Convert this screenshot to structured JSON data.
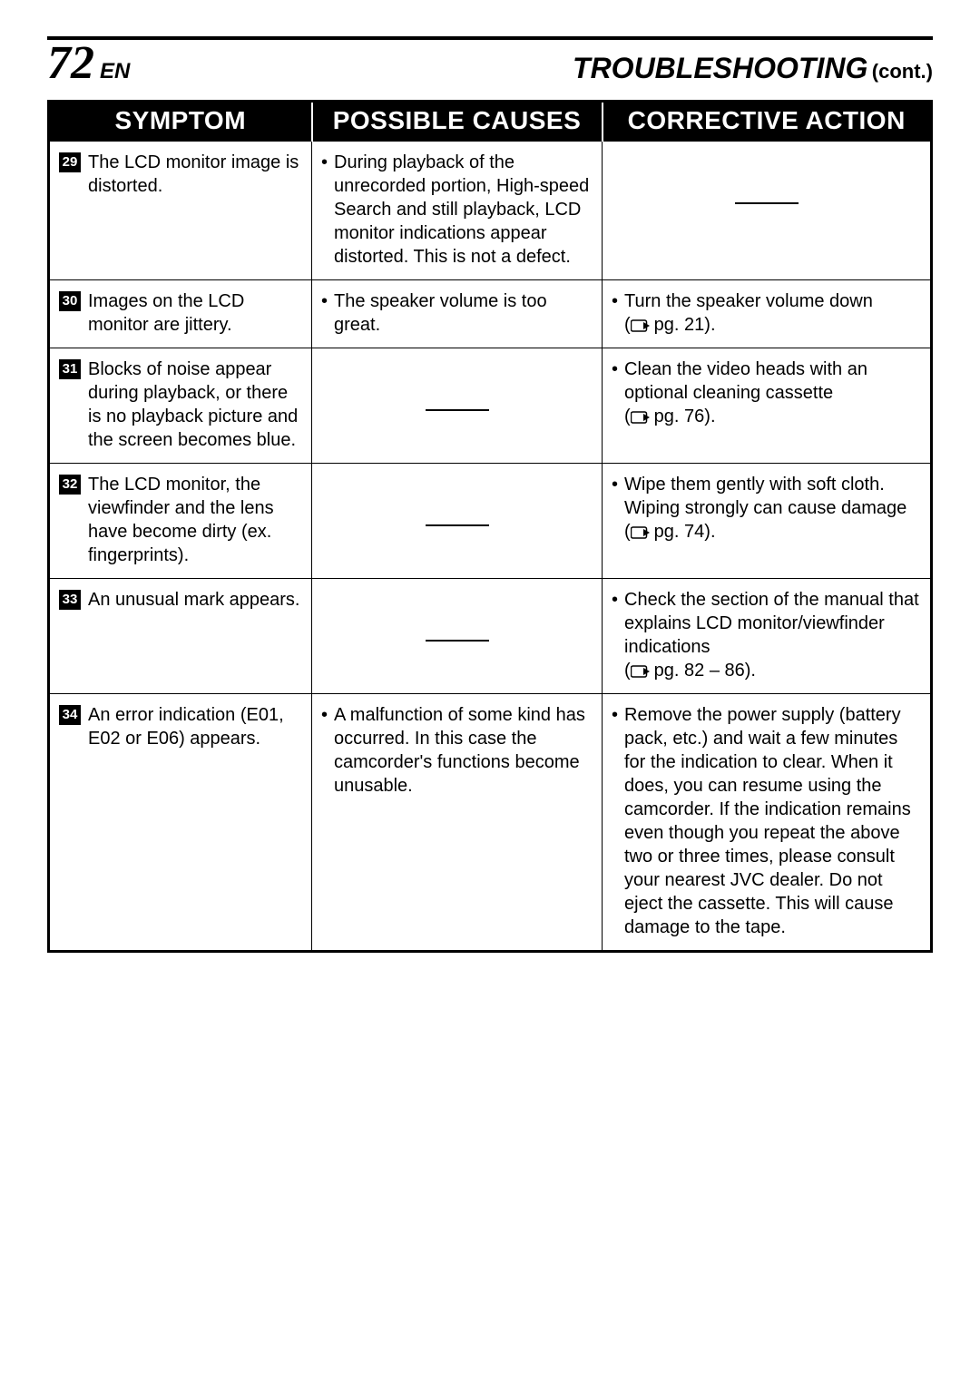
{
  "header": {
    "page_number": "72",
    "lang": "EN",
    "title": "TROUBLESHOOTING",
    "cont": "(cont.)"
  },
  "table": {
    "columns": [
      "SYMPTOM",
      "POSSIBLE CAUSES",
      "CORRECTIVE ACTION"
    ],
    "rows": [
      {
        "idx": "29",
        "symptom": "The LCD monitor image is distorted.",
        "cause": "During playback of the unrecorded portion, High-speed Search and still playback, LCD monitor indications appear distorted. This is not a defect.",
        "action": null,
        "action_ref": null
      },
      {
        "idx": "30",
        "symptom": "Images on the LCD monitor are jittery.",
        "cause": "The speaker volume is too great.",
        "action": "Turn the speaker volume down",
        "action_ref": "pg. 21"
      },
      {
        "idx": "31",
        "symptom": "Blocks of noise appear during playback, or there is no playback picture and the screen becomes blue.",
        "cause": null,
        "action": "Clean the video heads with an optional cleaning cassette",
        "action_ref": "pg. 76"
      },
      {
        "idx": "32",
        "symptom": "The LCD monitor, the viewfinder and the lens have become dirty (ex. fingerprints).",
        "cause": null,
        "action": "Wipe them gently with soft cloth. Wiping strongly can cause damage",
        "action_ref": "pg. 74"
      },
      {
        "idx": "33",
        "symptom": "An unusual mark appears.",
        "cause": null,
        "action": "Check the section of the manual that explains LCD monitor/viewfinder indications",
        "action_ref": "pg. 82 – 86"
      },
      {
        "idx": "34",
        "symptom": "An error indication (E01, E02 or E06) appears.",
        "cause": "A malfunction of some kind has occurred. In this case the camcorder's functions become unusable.",
        "action": "Remove the power supply (battery pack, etc.) and wait a few minutes for the indication to clear. When it does, you can resume using the camcorder. If the indication remains even though you repeat the above two or three times, please consult your nearest JVC dealer. Do not eject the cassette. This will cause damage to the tape.",
        "action_ref": null
      }
    ]
  },
  "colors": {
    "text": "#000000",
    "background": "#ffffff",
    "header_bg": "#000000",
    "header_fg": "#ffffff",
    "border": "#000000"
  }
}
